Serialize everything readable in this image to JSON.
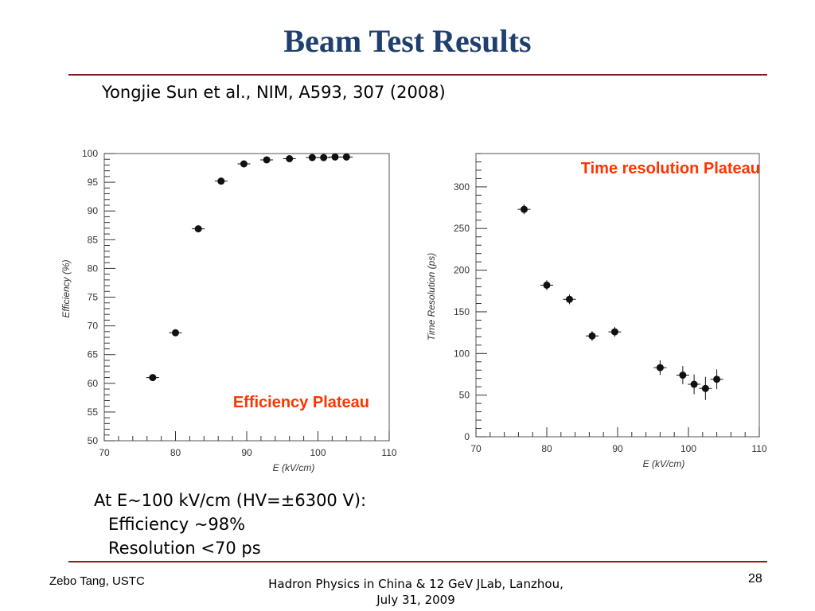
{
  "slide": {
    "title": "Beam Test Results",
    "citation": "Yongjie Sun et al., NIM, A593, 307 (2008)",
    "summary": {
      "line1": "At E~100 kV/cm (HV=±6300 V):",
      "line2": "Efficiency ~98%",
      "line3": "Resolution <70 ps"
    },
    "footer": {
      "left": "Zebo Tang, USTC",
      "center_line1": "Hadron Physics in China & 12 GeV JLab, Lanzhou,",
      "center_line2": "July 31, 2009",
      "page_number": "28"
    },
    "colors": {
      "title": "#1f3f6e",
      "rule": "#8b1a1a",
      "annotation": "#ff3300",
      "marker": "#111111"
    }
  },
  "chart_data": [
    {
      "type": "scatter",
      "xlabel": "E (kV/cm)",
      "ylabel": "Efficiency (%)",
      "xlim": [
        70,
        110
      ],
      "ylim": [
        50,
        100
      ],
      "xticks": [
        "70",
        "80",
        "90",
        "100",
        "110"
      ],
      "yticks": [
        "50",
        "55",
        "60",
        "65",
        "70",
        "75",
        "80",
        "85",
        "90",
        "95",
        "100"
      ],
      "annotation": "Efficiency Plateau",
      "points": [
        {
          "x": 76.8,
          "y": 61.0
        },
        {
          "x": 80.0,
          "y": 68.8
        },
        {
          "x": 83.2,
          "y": 86.9
        },
        {
          "x": 86.4,
          "y": 95.2
        },
        {
          "x": 89.6,
          "y": 98.2
        },
        {
          "x": 92.8,
          "y": 98.9
        },
        {
          "x": 96.0,
          "y": 99.1
        },
        {
          "x": 99.2,
          "y": 99.3
        },
        {
          "x": 100.8,
          "y": 99.3
        },
        {
          "x": 102.4,
          "y": 99.4
        },
        {
          "x": 104.0,
          "y": 99.4
        }
      ]
    },
    {
      "type": "scatter",
      "xlabel": "E (kV/cm)",
      "ylabel": "Time Resolution (ps)",
      "xlim": [
        70,
        110
      ],
      "ylim": [
        0,
        340
      ],
      "xticks": [
        "70",
        "80",
        "90",
        "100",
        "110"
      ],
      "yticks": [
        "0",
        "50",
        "100",
        "150",
        "200",
        "250",
        "300"
      ],
      "annotation": "Time resolution Plateau",
      "points": [
        {
          "x": 76.8,
          "y": 273,
          "yerr": 3
        },
        {
          "x": 80.0,
          "y": 182,
          "yerr": 3
        },
        {
          "x": 83.2,
          "y": 165,
          "yerr": 3
        },
        {
          "x": 86.4,
          "y": 121,
          "yerr": 3
        },
        {
          "x": 89.6,
          "y": 126,
          "yerr": 3
        },
        {
          "x": 96.0,
          "y": 83,
          "yerr": 6
        },
        {
          "x": 99.2,
          "y": 74,
          "yerr": 8
        },
        {
          "x": 100.8,
          "y": 63,
          "yerr": 9
        },
        {
          "x": 102.4,
          "y": 58,
          "yerr": 11
        },
        {
          "x": 104.0,
          "y": 69,
          "yerr": 9
        }
      ]
    }
  ]
}
